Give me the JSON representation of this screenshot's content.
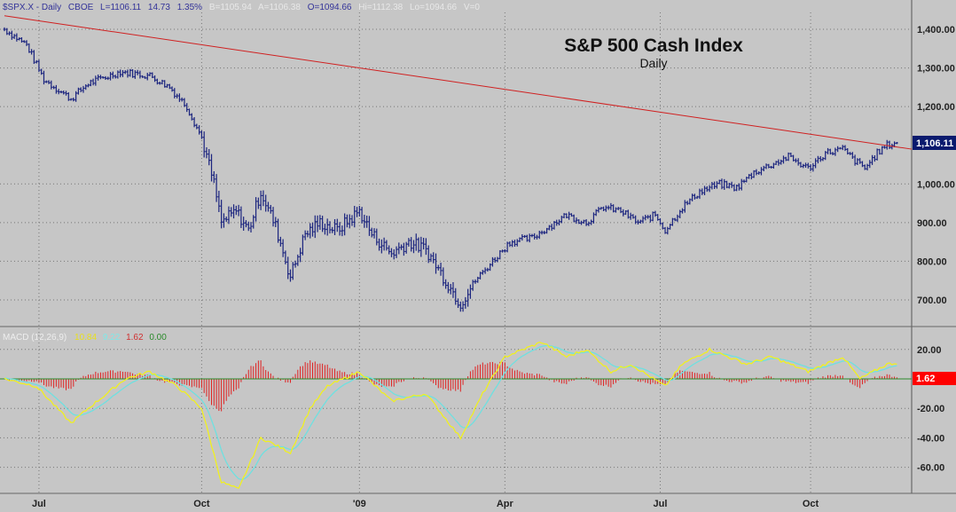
{
  "header": {
    "symbol": "$SPX.X - Daily",
    "exchange": "CBOE",
    "last": "L=1106.11",
    "change": "14.73",
    "change_pct": "1.35%",
    "bid": "B=1105.94",
    "ask": "A=1106.38",
    "open": "O=1094.66",
    "high": "Hi=1112.38",
    "low": "Lo=1094.66",
    "volume": "V=0"
  },
  "macd_legend": {
    "label": "MACD (12,26,9)",
    "macd": "10.84",
    "signal": "9.22",
    "hist": "1.62",
    "zero": "0.00"
  },
  "colors": {
    "bars": "#1a237e",
    "trend": "#d02020",
    "macd": "#f0f020",
    "signal": "#6fe0e0",
    "hist": "#e02020",
    "zero": "#2a8a2a",
    "last_badge": "#0a1a6e",
    "macd_badge": "#ff0000"
  },
  "chart_data": [
    {
      "type": "ohlc",
      "title": "S&P 500 Cash Index",
      "subtitle": "Daily",
      "y_ticks": [
        "1,400.00",
        "1,300.00",
        "1,200.00",
        "1,000.00",
        "900.00",
        "800.00",
        "700.00"
      ],
      "y_tick_values": [
        1400,
        1300,
        1200,
        1000,
        900,
        800,
        700
      ],
      "ylim": [
        660,
        1450
      ],
      "last_value_label": "1,106.11",
      "last_value": 1106.11,
      "x_ticks": [
        {
          "label": "Jul",
          "day": 14
        },
        {
          "label": "Oct",
          "day": 80
        },
        {
          "label": "'09",
          "day": 144
        },
        {
          "label": "Apr",
          "day": 203
        },
        {
          "label": "Jul",
          "day": 266
        },
        {
          "label": "Oct",
          "day": 327
        }
      ],
      "closes": [
        [
          0,
          1400
        ],
        [
          9,
          1360
        ],
        [
          16,
          1270
        ],
        [
          27,
          1220
        ],
        [
          34,
          1260
        ],
        [
          47,
          1290
        ],
        [
          59,
          1280
        ],
        [
          67,
          1250
        ],
        [
          74,
          1200
        ],
        [
          80,
          1120
        ],
        [
          85,
          1000
        ],
        [
          88,
          900
        ],
        [
          94,
          930
        ],
        [
          99,
          880
        ],
        [
          104,
          980
        ],
        [
          110,
          890
        ],
        [
          116,
          760
        ],
        [
          122,
          870
        ],
        [
          128,
          900
        ],
        [
          135,
          880
        ],
        [
          144,
          930
        ],
        [
          149,
          870
        ],
        [
          157,
          820
        ],
        [
          164,
          850
        ],
        [
          171,
          830
        ],
        [
          178,
          760
        ],
        [
          185,
          690
        ],
        [
          191,
          750
        ],
        [
          198,
          800
        ],
        [
          205,
          850
        ],
        [
          214,
          860
        ],
        [
          221,
          890
        ],
        [
          228,
          920
        ],
        [
          236,
          900
        ],
        [
          243,
          940
        ],
        [
          250,
          930
        ],
        [
          257,
          900
        ],
        [
          264,
          920
        ],
        [
          268,
          880
        ],
        [
          275,
          940
        ],
        [
          282,
          980
        ],
        [
          290,
          1000
        ],
        [
          297,
          990
        ],
        [
          304,
          1030
        ],
        [
          311,
          1050
        ],
        [
          318,
          1070
        ],
        [
          326,
          1040
        ],
        [
          333,
          1080
        ],
        [
          340,
          1090
        ],
        [
          345,
          1060
        ],
        [
          349,
          1040
        ],
        [
          354,
          1080
        ],
        [
          358,
          1100
        ],
        [
          362,
          1106.11
        ]
      ],
      "trendline": [
        [
          0,
          1435
        ],
        [
          368,
          1090
        ]
      ]
    },
    {
      "type": "line",
      "title": "MACD (12,26,9)",
      "y_ticks": [
        "20.00",
        "-20.00",
        "-40.00",
        "-60.00"
      ],
      "y_tick_values": [
        20,
        -20,
        -40,
        -60
      ],
      "last_hist_label": "1.62",
      "macd": [
        [
          0,
          0
        ],
        [
          13,
          -5
        ],
        [
          27,
          -30
        ],
        [
          34,
          -20
        ],
        [
          49,
          0
        ],
        [
          59,
          5
        ],
        [
          70,
          -5
        ],
        [
          80,
          -20
        ],
        [
          88,
          -70
        ],
        [
          95,
          -75
        ],
        [
          104,
          -40
        ],
        [
          116,
          -50
        ],
        [
          124,
          -20
        ],
        [
          131,
          -5
        ],
        [
          144,
          5
        ],
        [
          157,
          -15
        ],
        [
          171,
          -10
        ],
        [
          185,
          -40
        ],
        [
          194,
          -10
        ],
        [
          203,
          15
        ],
        [
          218,
          25
        ],
        [
          228,
          15
        ],
        [
          236,
          20
        ],
        [
          246,
          5
        ],
        [
          254,
          10
        ],
        [
          268,
          -5
        ],
        [
          275,
          10
        ],
        [
          286,
          20
        ],
        [
          301,
          10
        ],
        [
          311,
          15
        ],
        [
          326,
          5
        ],
        [
          340,
          15
        ],
        [
          347,
          0
        ],
        [
          358,
          10
        ],
        [
          362,
          10.84
        ]
      ]
    }
  ]
}
